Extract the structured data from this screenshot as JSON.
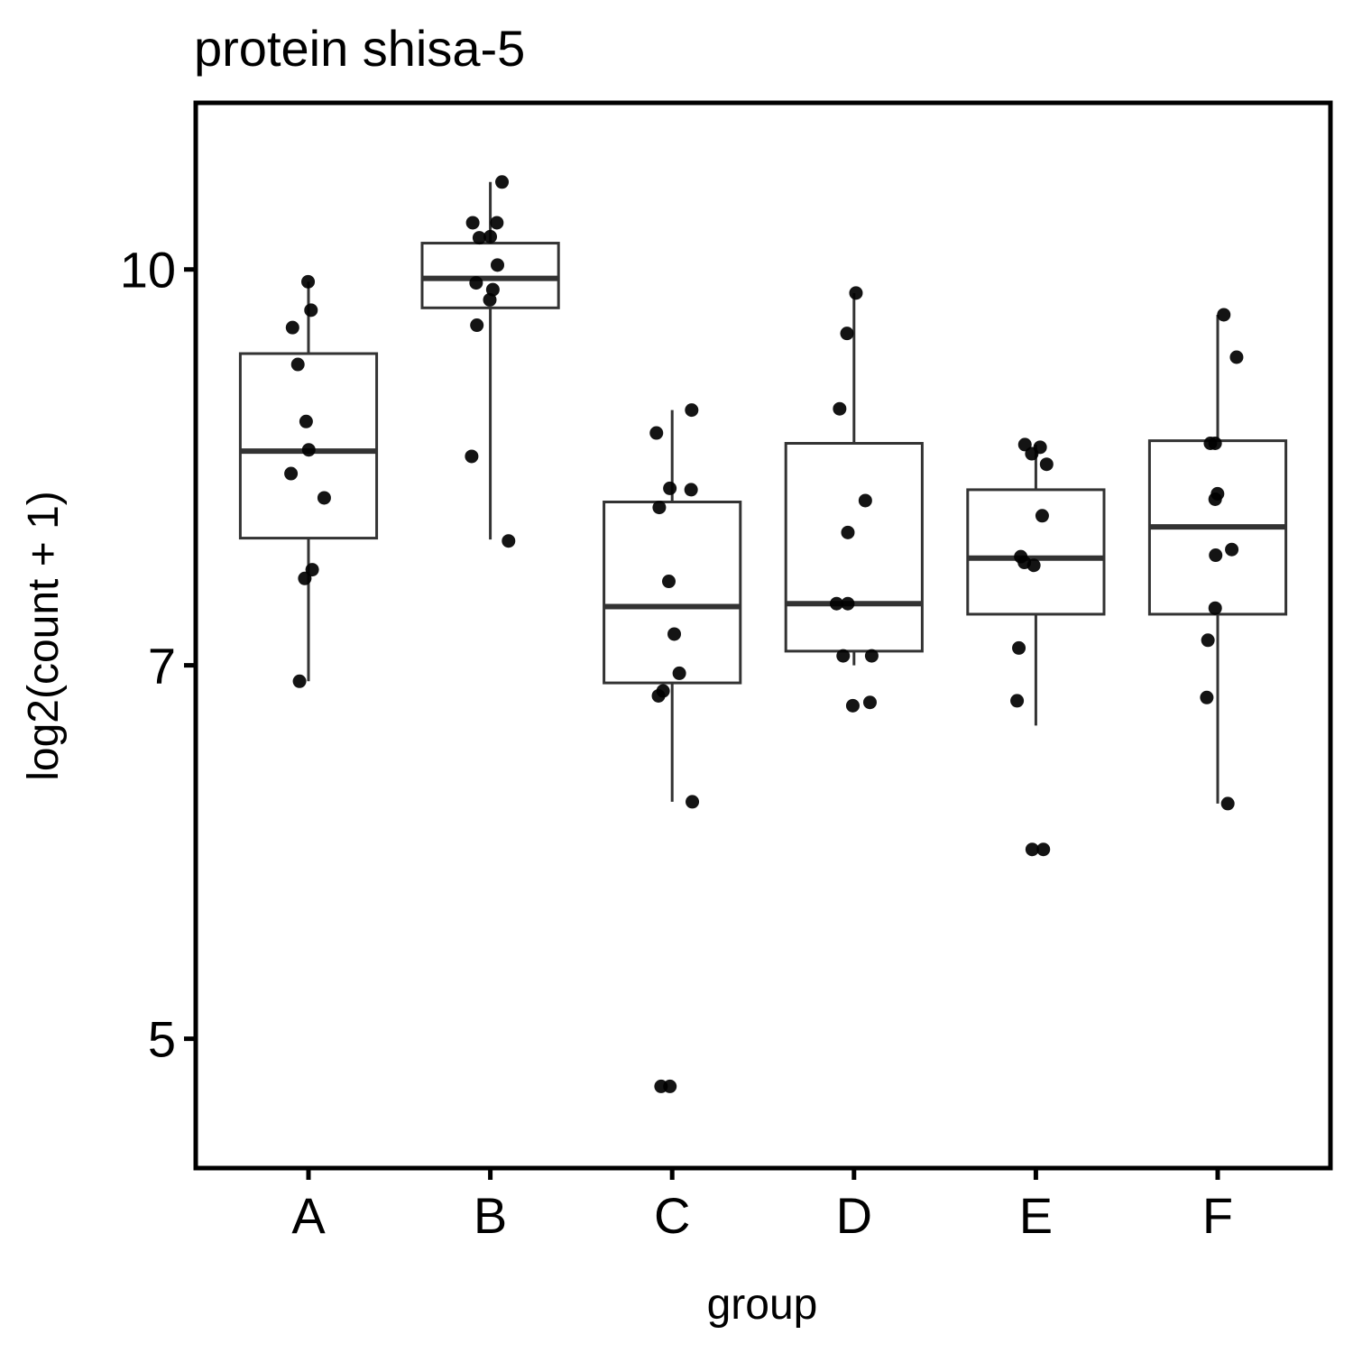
{
  "chart_data": {
    "type": "box",
    "title": "protein shisa-5",
    "xlabel": "group",
    "ylabel": "log2(count + 1)",
    "y_scale": "log",
    "ylim": [
      4.45,
      11.62
    ],
    "yticks": [
      5,
      7,
      10
    ],
    "grid": false,
    "categories": [
      "A",
      "B",
      "C",
      "D",
      "E",
      "F"
    ],
    "boxes": [
      {
        "category": "A",
        "whisker_low": 6.9,
        "q1": 7.85,
        "median": 8.49,
        "q3": 9.27,
        "whisker_high": 9.89
      },
      {
        "category": "B",
        "whisker_low": 7.84,
        "q1": 9.66,
        "median": 9.92,
        "q3": 10.24,
        "whisker_high": 10.82
      },
      {
        "category": "C",
        "whisker_low": 6.19,
        "q1": 6.89,
        "median": 7.38,
        "q3": 8.11,
        "whisker_high": 8.81
      },
      {
        "category": "D",
        "whisker_low": 7.0,
        "q1": 7.09,
        "median": 7.4,
        "q3": 8.55,
        "whisker_high": 9.79
      },
      {
        "category": "E",
        "whisker_low": 6.63,
        "q1": 7.33,
        "median": 7.71,
        "q3": 8.2,
        "whisker_high": 8.54
      },
      {
        "category": "F",
        "whisker_low": 6.18,
        "q1": 7.33,
        "median": 7.93,
        "q3": 8.57,
        "whisker_high": 9.6
      }
    ],
    "points": [
      {
        "category": "A",
        "values": [
          9.89,
          9.64,
          9.49,
          9.18,
          8.72,
          8.5,
          8.32,
          8.14,
          7.63,
          7.57,
          6.9
        ]
      },
      {
        "category": "B",
        "values": [
          10.82,
          10.43,
          10.43,
          10.3,
          10.29,
          10.04,
          9.88,
          9.82,
          9.73,
          9.51,
          8.45,
          7.83
        ]
      },
      {
        "category": "C",
        "values": [
          8.81,
          8.63,
          8.21,
          8.2,
          8.07,
          7.55,
          7.2,
          6.95,
          6.84,
          6.81,
          6.19,
          4.79,
          4.79
        ]
      },
      {
        "category": "D",
        "values": [
          9.79,
          9.44,
          8.82,
          8.12,
          7.89,
          7.4,
          7.4,
          7.06,
          7.06,
          6.77,
          6.75
        ]
      },
      {
        "category": "E",
        "values": [
          8.54,
          8.52,
          8.47,
          8.39,
          8.01,
          7.72,
          7.68,
          7.66,
          7.11,
          6.78,
          5.93,
          5.93
        ]
      },
      {
        "category": "F",
        "values": [
          9.6,
          9.24,
          8.55,
          8.55,
          8.17,
          8.13,
          7.77,
          7.73,
          7.37,
          7.16,
          6.8,
          6.18
        ]
      }
    ]
  }
}
